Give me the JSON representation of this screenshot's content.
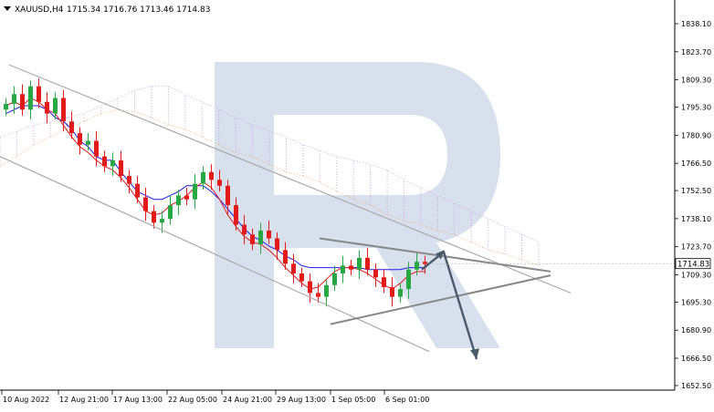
{
  "header": {
    "menu_icon": "triangle-down-icon",
    "symbol": "XAUUSD,H4",
    "ohlc": "1715.34 1716.76 1713.46 1714.83"
  },
  "price_tag": "1714.83",
  "watermark": "R",
  "colors": {
    "bull": "#27a844",
    "bear": "#e31a1a",
    "kijun": "#1c1cf0",
    "tenkan": "#e31a1a",
    "cloud_a": "#f4a460",
    "cloud_b": "#c9a0dc",
    "channel": "#a9a9a9",
    "triangle": "#888888",
    "arrow": "#4a5a6a",
    "watermark": "#c9d3e6"
  },
  "chart_data": {
    "type": "candlestick",
    "symbol": "XAUUSD",
    "timeframe": "H4",
    "ylim": [
      1652.5,
      1852.0
    ],
    "y_ticks": [
      "1838.10",
      "1823.70",
      "1809.30",
      "1795.30",
      "1780.90",
      "1766.50",
      "1752.50",
      "1738.10",
      "1723.70",
      "1709.30",
      "1695.30",
      "1680.90",
      "1666.50",
      "1652.50"
    ],
    "x_ticks": [
      "10 Aug 2022",
      "12 Aug 21:00",
      "17 Aug 13:00",
      "22 Aug 05:00",
      "24 Aug 21:00",
      "29 Aug 13:00",
      "1 Sep 05:00",
      "6 Sep 01:00"
    ],
    "last_price": 1714.83,
    "close_path": [
      1797,
      1802,
      1794,
      1806,
      1798,
      1792,
      1800,
      1788,
      1782,
      1776,
      1778,
      1770,
      1765,
      1768,
      1760,
      1756,
      1749,
      1742,
      1736,
      1738,
      1745,
      1750,
      1748,
      1756,
      1762,
      1758,
      1755,
      1745,
      1735,
      1730,
      1725,
      1732,
      1728,
      1722,
      1715,
      1710,
      1706,
      1700,
      1698,
      1704,
      1710,
      1714,
      1712,
      1718,
      1712,
      1708,
      1703,
      1698,
      1702,
      1712,
      1716,
      1714.83
    ],
    "tenkan_path": [
      1796,
      1798,
      1796,
      1800,
      1798,
      1794,
      1792,
      1786,
      1780,
      1775,
      1772,
      1768,
      1765,
      1763,
      1759,
      1754,
      1748,
      1742,
      1740,
      1741,
      1745,
      1747,
      1750,
      1754,
      1757,
      1754,
      1748,
      1740,
      1734,
      1729,
      1726,
      1725,
      1722,
      1718,
      1713,
      1709,
      1705,
      1702,
      1703,
      1707,
      1711,
      1713,
      1713,
      1712,
      1710,
      1707,
      1704,
      1702,
      1705,
      1709,
      1711,
      1711
    ],
    "kijun_path": [
      1792,
      1794,
      1796,
      1796,
      1796,
      1794,
      1790,
      1788,
      1784,
      1778,
      1775,
      1770,
      1768,
      1768,
      1762,
      1757,
      1752,
      1750,
      1748,
      1748,
      1750,
      1752,
      1755,
      1755,
      1755,
      1752,
      1748,
      1743,
      1738,
      1733,
      1729,
      1727,
      1724,
      1722,
      1719,
      1717,
      1714,
      1713,
      1713,
      1713,
      1713,
      1713,
      1713,
      1713,
      1712,
      1712,
      1712,
      1712,
      1712,
      1713,
      1713,
      1713
    ],
    "senkou_a_path": [
      1765,
      1770,
      1776,
      1780,
      1784,
      1788,
      1792,
      1794,
      1793,
      1790,
      1786,
      1784,
      1780,
      1776,
      1772,
      1770,
      1766,
      1762,
      1760,
      1757,
      1752,
      1748,
      1745,
      1740,
      1737,
      1735,
      1732,
      1730,
      1726,
      1722,
      1720,
      1717,
      1714
    ],
    "senkou_b_path": [
      1780,
      1783,
      1786,
      1788,
      1790,
      1792,
      1796,
      1800,
      1804,
      1806,
      1806,
      1802,
      1798,
      1794,
      1790,
      1786,
      1783,
      1780,
      1776,
      1773,
      1770,
      1768,
      1766,
      1763,
      1758,
      1754,
      1750,
      1746,
      1742,
      1738,
      1734,
      1730,
      1726
    ],
    "channel": {
      "upper": [
        [
          0,
          1817
        ],
        [
          1,
          1700
        ]
      ],
      "lower": [
        [
          0,
          1770
        ],
        [
          1,
          1670
        ]
      ]
    },
    "triangle": {
      "upper": [
        [
          0,
          1728
        ],
        [
          1,
          1711
        ]
      ],
      "lower": [
        [
          0,
          1684
        ],
        [
          1,
          1709
        ]
      ]
    },
    "forecast_arrow": {
      "from": 1721,
      "to": 1666
    }
  }
}
